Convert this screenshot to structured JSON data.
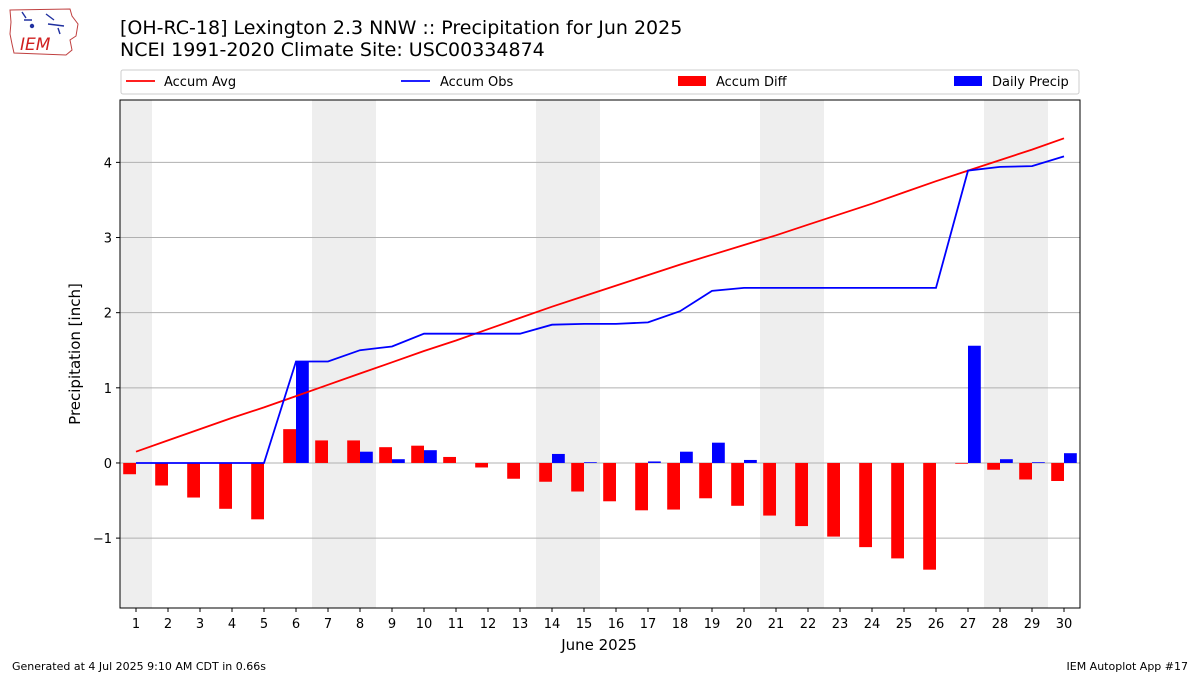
{
  "header": {
    "title_line1": "[OH-RC-18] Lexington 2.3 NNW :: Precipitation for Jun 2025",
    "title_line2": "NCEI 1991-2020 Climate Site: USC00334874"
  },
  "logo": {
    "text": "IEM",
    "icon": "iem-iowa-logo"
  },
  "footer": {
    "generated": "Generated at 4 Jul 2025 9:10 AM CDT in 0.66s",
    "app": "IEM Autoplot App #17"
  },
  "colors": {
    "accum_avg": "#ff0000",
    "accum_obs": "#0000ff",
    "accum_diff": "#ff0000",
    "daily_precip": "#0000ff",
    "weekend_shade": "#eeeeee",
    "grid": "#b0b0b0"
  },
  "chart_data": {
    "type": "bar",
    "xlabel": "June 2025",
    "ylabel": "Precipitation [inch]",
    "ylim": [
      -1.93,
      4.83
    ],
    "yticks": [
      -1,
      0,
      1,
      2,
      3,
      4
    ],
    "ytick_labels": [
      "−1",
      "0",
      "1",
      "2",
      "3",
      "4"
    ],
    "grid": "horizontal",
    "legend_placement": "top",
    "categories": [
      "1",
      "2",
      "3",
      "4",
      "5",
      "6",
      "7",
      "8",
      "9",
      "10",
      "11",
      "12",
      "13",
      "14",
      "15",
      "16",
      "17",
      "18",
      "19",
      "20",
      "21",
      "22",
      "23",
      "24",
      "25",
      "26",
      "27",
      "28",
      "29",
      "30"
    ],
    "weekend_days": [
      1,
      7,
      8,
      14,
      15,
      21,
      22,
      28,
      29
    ],
    "series": [
      {
        "name": "Accum Avg",
        "kind": "line",
        "values": [
          0.15,
          0.3,
          0.45,
          0.6,
          0.74,
          0.89,
          1.04,
          1.19,
          1.34,
          1.49,
          1.63,
          1.78,
          1.93,
          2.08,
          2.22,
          2.36,
          2.5,
          2.64,
          2.77,
          2.9,
          3.03,
          3.17,
          3.31,
          3.45,
          3.6,
          3.75,
          3.89,
          4.03,
          4.17,
          4.32
        ]
      },
      {
        "name": "Accum Obs",
        "kind": "line",
        "values": [
          0,
          0,
          0,
          0,
          0,
          1.35,
          1.35,
          1.5,
          1.55,
          1.72,
          1.72,
          1.72,
          1.72,
          1.84,
          1.85,
          1.85,
          1.87,
          2.02,
          2.29,
          2.33,
          2.33,
          2.33,
          2.33,
          2.33,
          2.33,
          2.33,
          3.89,
          3.94,
          3.95,
          4.08
        ]
      },
      {
        "name": "Accum Diff",
        "kind": "bar",
        "values": [
          -0.15,
          -0.3,
          -0.46,
          -0.61,
          -0.75,
          0.45,
          0.3,
          0.3,
          0.21,
          0.23,
          0.08,
          -0.06,
          -0.21,
          -0.25,
          -0.38,
          -0.51,
          -0.63,
          -0.62,
          -0.47,
          -0.57,
          -0.7,
          -0.84,
          -0.98,
          -1.12,
          -1.27,
          -1.42,
          -0.01,
          -0.09,
          -0.22,
          -0.24
        ]
      },
      {
        "name": "Daily Precip",
        "kind": "bar",
        "values": [
          0,
          0,
          0,
          0,
          0,
          1.35,
          0,
          0.15,
          0.05,
          0.17,
          0,
          0,
          0,
          0.12,
          0.01,
          0,
          0.02,
          0.15,
          0.27,
          0.04,
          0,
          0,
          0,
          0,
          0,
          0,
          1.56,
          0.05,
          0.01,
          0.13
        ]
      }
    ]
  }
}
